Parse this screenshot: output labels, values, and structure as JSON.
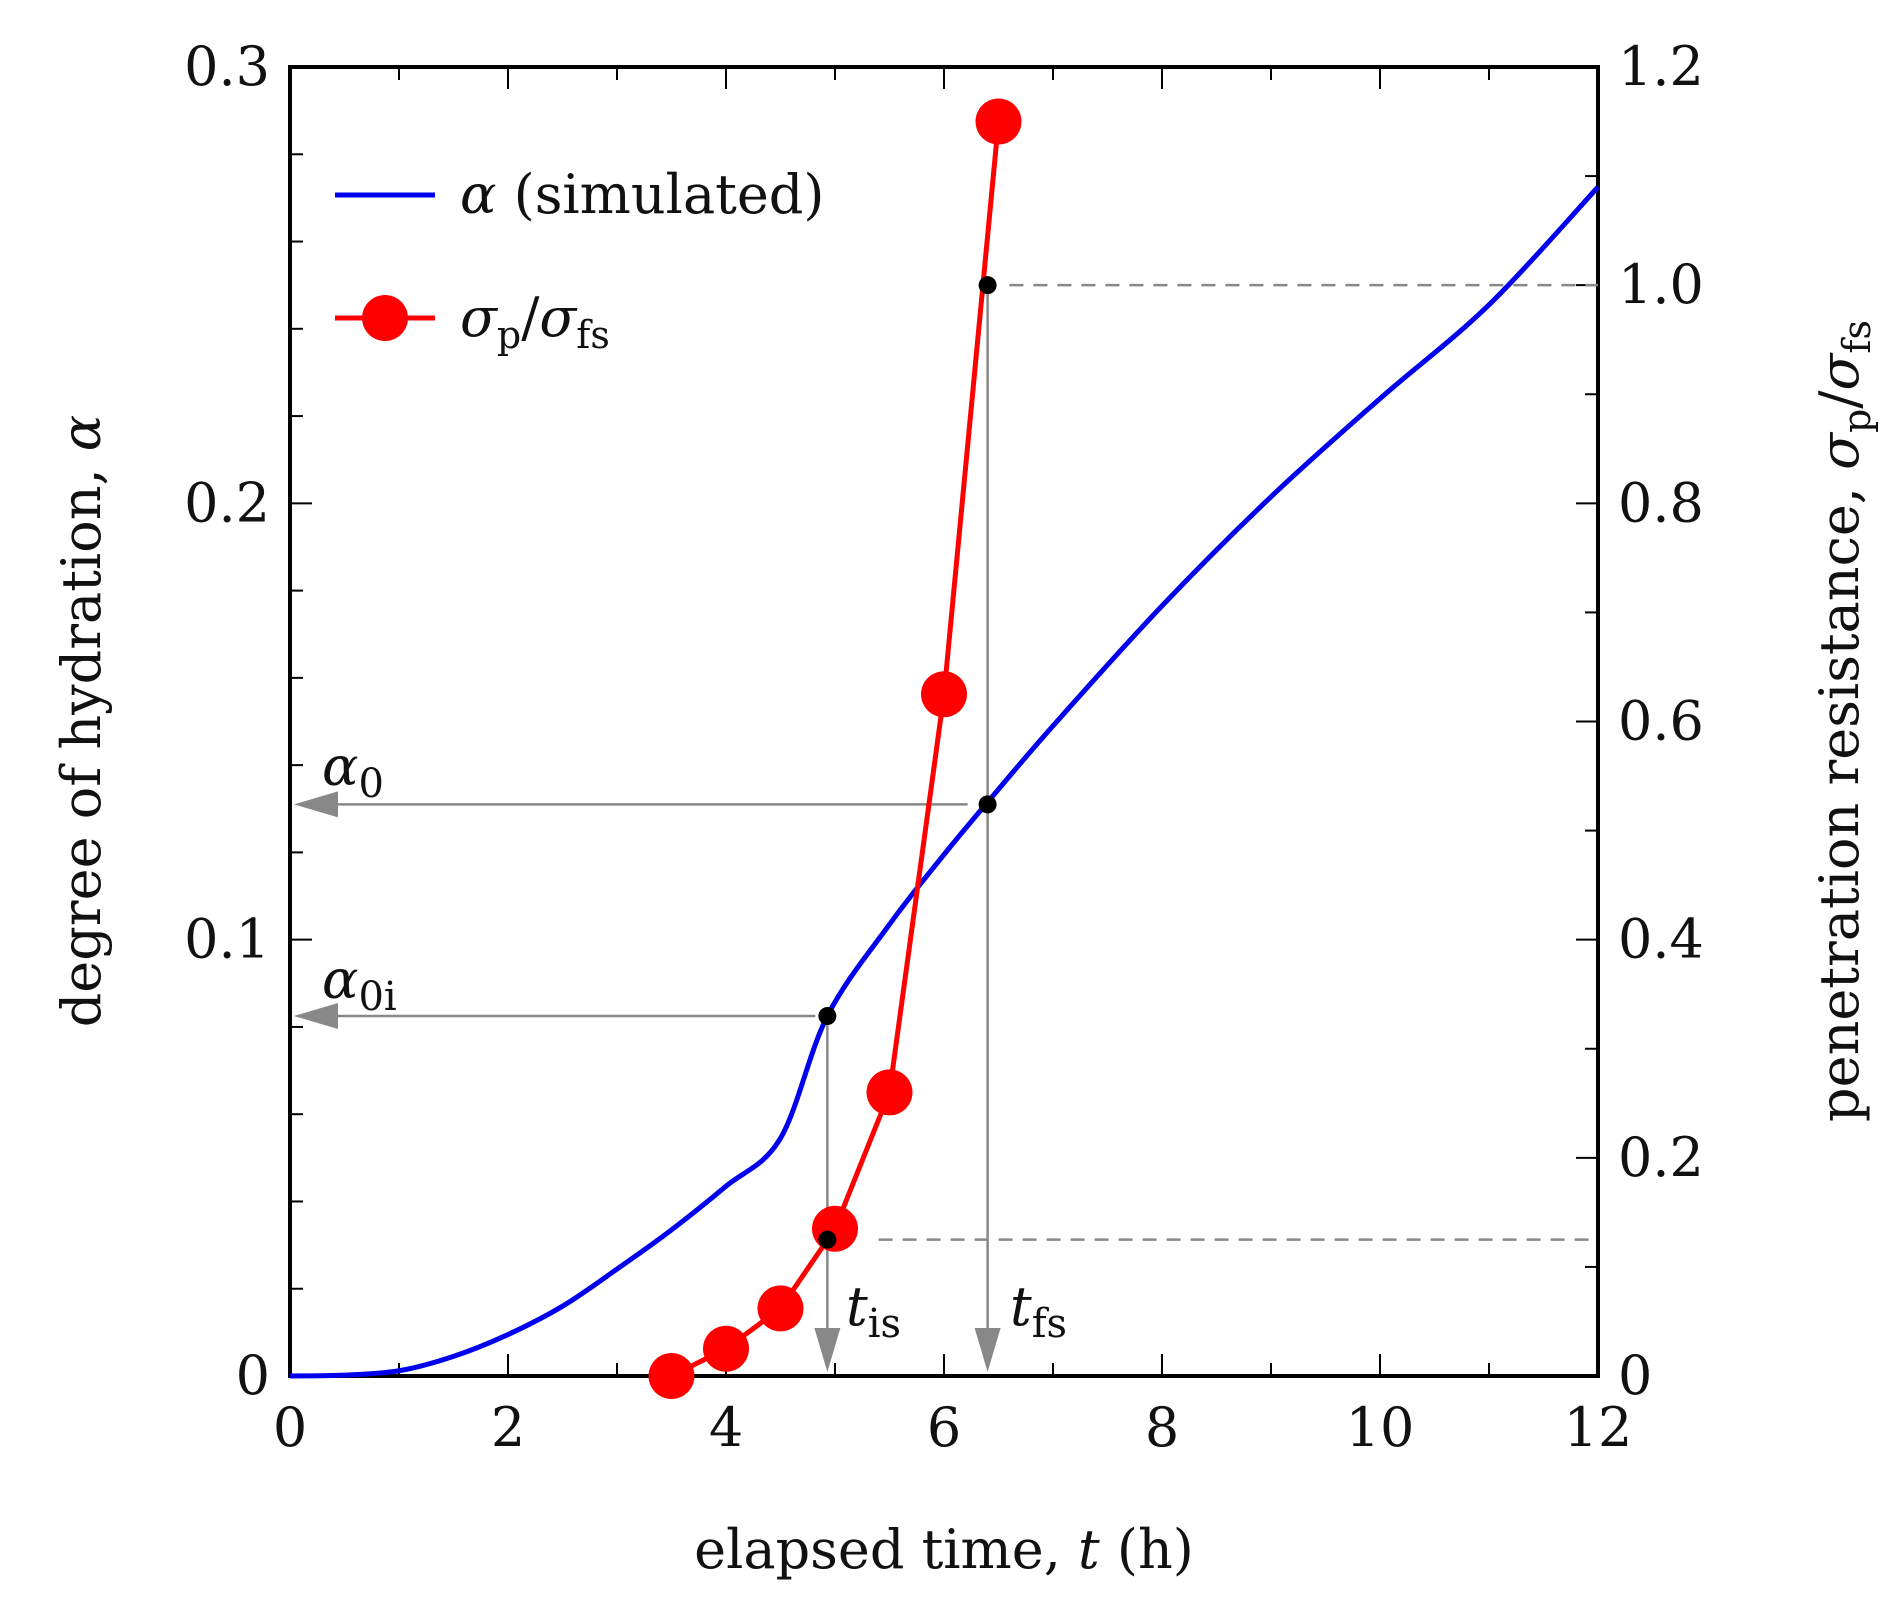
{
  "chart_data": {
    "type": "line",
    "xlabel_prefix": "elapsed time, ",
    "xlabel_var": "t",
    "xlabel_unit": " (h)",
    "ylabel_left_prefix": "degree of hydration, ",
    "ylabel_left_var": "α",
    "ylabel_right_prefix": "penetration resistance, ",
    "ylabel_right_var": "σ",
    "ylabel_right_sub1": "p",
    "ylabel_right_slash": "/",
    "ylabel_right_sub2": "fs",
    "xlim": [
      0,
      12
    ],
    "ylim_left": [
      0,
      0.3
    ],
    "ylim_right": [
      0,
      1.2
    ],
    "x_ticks": [
      "0",
      "2",
      "4",
      "6",
      "8",
      "10",
      "12"
    ],
    "y_left_ticks": [
      "0",
      "0.1",
      "0.2",
      "0.3"
    ],
    "y_right_ticks": [
      "0",
      "0.2",
      "0.4",
      "0.6",
      "0.8",
      "1.0",
      "1.2"
    ],
    "series": [
      {
        "name": "α (simulated)",
        "axis": "left",
        "color": "#0000ee",
        "x": [
          0,
          0.5,
          1.0,
          1.5,
          2.0,
          2.5,
          3.0,
          3.5,
          4.0,
          4.5,
          4.93,
          5.5,
          6.0,
          6.4,
          7.0,
          8.0,
          9.0,
          10.0,
          11.0,
          12.0
        ],
        "y": [
          0,
          0.0002,
          0.0012,
          0.0045,
          0.0095,
          0.016,
          0.0245,
          0.0335,
          0.0435,
          0.0545,
          0.0825,
          0.1035,
          0.1195,
          0.1315,
          0.149,
          0.1765,
          0.2015,
          0.224,
          0.2455,
          0.2725
        ]
      },
      {
        "name": "σp/σfs",
        "axis": "right",
        "color": "#ff0000",
        "x": [
          3.5,
          4.0,
          4.5,
          5.0,
          5.5,
          6.0,
          6.5
        ],
        "y": [
          0.0,
          0.025,
          0.062,
          0.135,
          0.26,
          0.625,
          1.15
        ]
      }
    ],
    "legend": {
      "position": "top-left",
      "entries": [
        {
          "var": "α",
          "text": " (simulated)"
        },
        {
          "var": "σ",
          "sub1": "p",
          "slash": "/",
          "var2": "σ",
          "sub2": "fs"
        }
      ]
    },
    "annotations": {
      "alpha0": {
        "var": "α",
        "sub": "0",
        "value": 0.131
      },
      "alpha0i": {
        "var": "α",
        "sub": "0i",
        "value": 0.0825
      },
      "tis": {
        "var": "t",
        "sub": "is",
        "value": 4.93,
        "right_value": 0.125
      },
      "tfs": {
        "var": "t",
        "sub": "fs",
        "value": 6.4,
        "right_value": 1.0
      }
    }
  }
}
